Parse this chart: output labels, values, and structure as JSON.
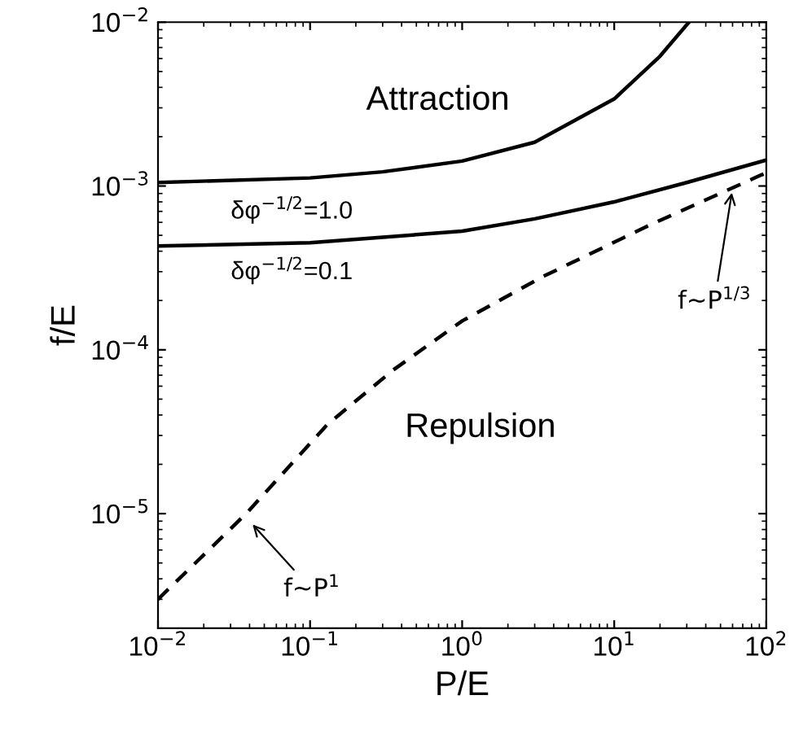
{
  "chart_data": {
    "type": "line",
    "xlabel": "P/E",
    "ylabel": "f/E",
    "log": "xy",
    "xlim": [
      0.01,
      100
    ],
    "ylim": [
      2e-06,
      0.01
    ],
    "xticks": [
      {
        "value": 0.01,
        "label": "10$^{−2}$"
      },
      {
        "value": 0.1,
        "label": "10$^{−1}$"
      },
      {
        "value": 1,
        "label": "10$^{0}$"
      },
      {
        "value": 10,
        "label": "10$^{1}$"
      },
      {
        "value": 100,
        "label": "10$^{2}$"
      }
    ],
    "yticks": [
      {
        "value": 1e-05,
        "label": "10$^{−5}$"
      },
      {
        "value": 0.0001,
        "label": "10$^{−4}$"
      },
      {
        "value": 0.001,
        "label": "10$^{−3}$"
      },
      {
        "value": 0.01,
        "label": "10$^{−2}$"
      }
    ],
    "grid": false,
    "legend": false,
    "marker": "none",
    "series": [
      {
        "color": "#000000",
        "line_style": "solid",
        "x": [
          0.01,
          0.1,
          0.3,
          1,
          3,
          10,
          20,
          31
        ],
        "values": [
          0.00105,
          0.00112,
          0.00122,
          0.00142,
          0.00185,
          0.0034,
          0.0062,
          0.01
        ]
      },
      {
        "color": "#000000",
        "line_style": "solid",
        "x": [
          0.01,
          0.1,
          1,
          3,
          10,
          30,
          100
        ],
        "values": [
          0.00043,
          0.00045,
          0.00053,
          0.00063,
          0.0008,
          0.00105,
          0.00144
        ]
      },
      {
        "color": "#000000",
        "line_style": "dashed",
        "x": [
          0.01,
          0.038,
          0.13,
          0.35,
          1,
          3.4,
          18,
          93,
          100
        ],
        "values": [
          3e-06,
          1e-05,
          3.5e-05,
          7.5e-05,
          0.00015,
          0.00028,
          0.00059,
          0.00117,
          0.0012
        ]
      }
    ],
    "annotations": [
      "Attraction",
      "Repulsion",
      "δφ$^{−1/2}$=1.0",
      "δφ$^{−1/2}$=0.1",
      {
        "text": "f∼P$^{1}$",
        "x": 0.04,
        "y": 9e-06
      },
      {
        "text": "f∼P$^{1/3}$",
        "x": 60,
        "y": 0.00097
      }
    ]
  }
}
